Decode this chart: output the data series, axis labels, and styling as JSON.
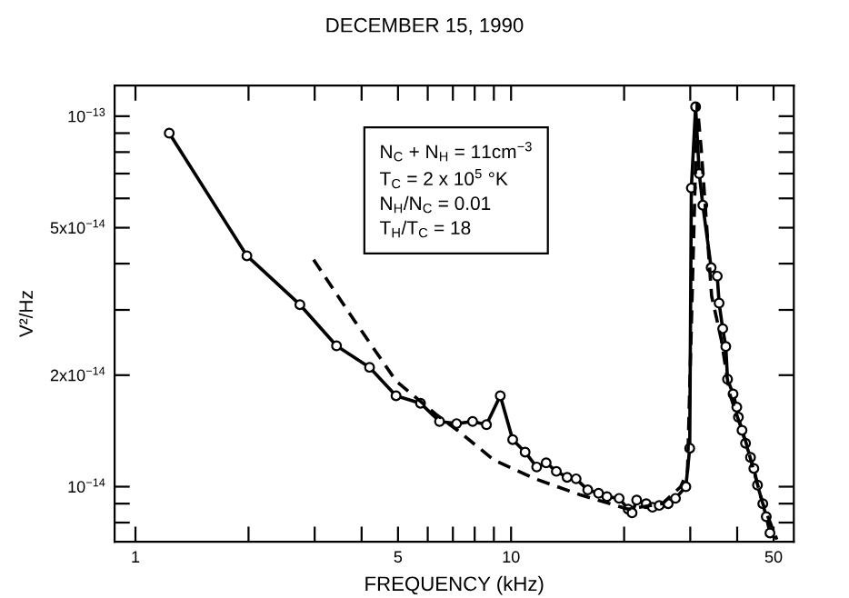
{
  "chart_data": {
    "type": "line",
    "title": "DECEMBER 15, 1990",
    "xlabel": "FREQUENCY (kHz)",
    "ylabel": "V²/Hz",
    "log": "xy",
    "xlim": [
      0.88,
      56.6
    ],
    "ylim": [
      7.1e-15,
      1.21e-13
    ],
    "xticks": [
      1,
      {
        "value": 2,
        "label": null
      },
      {
        "value": 3,
        "label": null
      },
      {
        "value": 4,
        "label": null
      },
      5,
      {
        "value": 6,
        "label": null
      },
      {
        "value": 7,
        "label": null
      },
      {
        "value": 8,
        "label": null
      },
      {
        "value": 9,
        "label": null
      },
      10,
      {
        "value": 20,
        "label": null
      },
      {
        "value": 30,
        "label": null
      },
      {
        "value": 40,
        "label": null
      },
      50
    ],
    "yticks": [
      {
        "value": 8e-15,
        "label": null
      },
      {
        "value": 9e-15,
        "label": null
      },
      {
        "value": 1e-14,
        "label": "10$^{−14}$"
      },
      {
        "value": 2e-14,
        "label": "2x10$^{−14}$"
      },
      {
        "value": 3e-14,
        "label": null
      },
      {
        "value": 4e-14,
        "label": null
      },
      {
        "value": 5e-14,
        "label": "5x10$^{−14}$"
      },
      {
        "value": 6e-14,
        "label": null
      },
      {
        "value": 7e-14,
        "label": null
      },
      {
        "value": 8e-14,
        "label": null
      },
      {
        "value": 9e-14,
        "label": null
      },
      {
        "value": 1e-13,
        "label": "10$^{−13}$"
      }
    ],
    "annotations": [
      "N$_{C}$ + N$_{H}$ = 11cm$^{−3}$",
      "T$_{C}$ = 2 x 10$^{5}$ °K",
      "N$_{H}$/N$_{C}$ = 0.01",
      "T$_{H}$/T$_{C}$ = 18"
    ],
    "series": [
      {
        "color": "#000000",
        "marker": "circle",
        "line_style": "solid",
        "x": [
          1.23,
          1.98,
          2.74,
          3.43,
          4.2,
          4.94,
          5.74,
          6.45,
          7.16,
          7.9,
          8.6,
          9.36,
          10.1,
          10.9,
          11.7,
          12.4,
          13.2,
          14.1,
          14.9,
          16.0,
          17.1,
          18.0,
          19.4,
          20.5,
          21.0,
          21.6,
          22.9,
          23.8,
          24.8,
          26.2,
          27.4,
          29.2,
          29.9,
          30.2,
          31.0,
          31.7,
          32.4,
          34.1,
          35.4,
          35.8,
          36.6,
          37.3,
          37.7,
          39.0,
          39.9,
          40.3,
          41.2,
          42.1,
          43.4,
          44.3,
          45.3,
          46.8,
          47.8,
          48.9
        ],
        "values": [
          9e-14,
          4.2e-14,
          3.1e-14,
          2.4e-14,
          2.1e-14,
          1.76e-14,
          1.68e-14,
          1.5e-14,
          1.48e-14,
          1.5e-14,
          1.47e-14,
          1.76e-14,
          1.34e-14,
          1.24e-14,
          1.13e-14,
          1.16e-14,
          1.1e-14,
          1.06e-14,
          1.05e-14,
          9.8e-15,
          9.6e-15,
          9.4e-15,
          9.3e-15,
          8.7e-15,
          8.5e-15,
          9.2e-15,
          9e-15,
          8.8e-15,
          8.9e-15,
          9e-15,
          9.3e-15,
          1e-14,
          1.27e-14,
          6.4e-14,
          1.06e-13,
          7e-14,
          5.75e-14,
          3.9e-14,
          3.7e-14,
          3.13e-14,
          2.67e-14,
          2.39e-14,
          1.95e-14,
          1.78e-14,
          1.64e-14,
          1.54e-14,
          1.42e-14,
          1.31e-14,
          1.2e-14,
          1.12e-14,
          1.01e-14,
          9e-15,
          8.3e-15,
          7.5e-15
        ]
      },
      {
        "color": "#000000",
        "marker": "none",
        "line_style": "dashed",
        "x": [
          2.98,
          3.78,
          4.94,
          6.3,
          7.2,
          9.0,
          11.6,
          15.3,
          20.5,
          25.3,
          28.3,
          29.5,
          31.3,
          32.1,
          34.2,
          36.3,
          38.2,
          42.1,
          46.8,
          51.0
        ],
        "values": [
          4.1e-14,
          2.86e-14,
          1.93e-14,
          1.57e-14,
          1.42e-14,
          1.18e-14,
          1.05e-14,
          9.5e-15,
          8.7e-15,
          9e-15,
          1e-14,
          1.1e-14,
          1.08e-13,
          8.1e-14,
          3.27e-14,
          2.49e-14,
          1.78e-14,
          1.33e-14,
          9e-15,
          7.2e-15
        ]
      }
    ]
  }
}
